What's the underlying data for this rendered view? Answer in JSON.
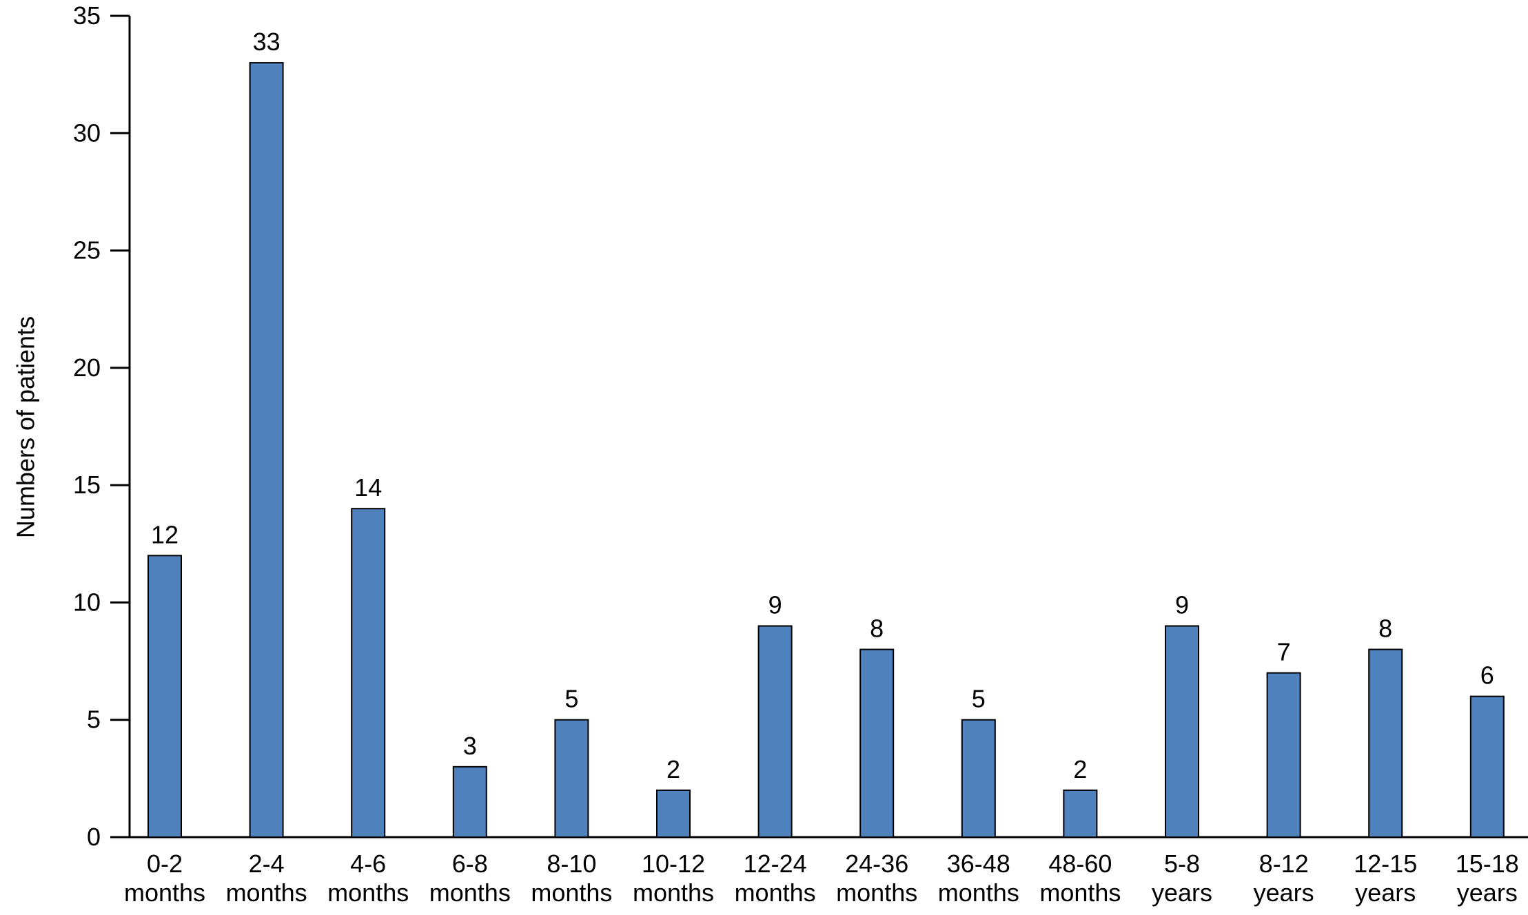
{
  "chart_data": {
    "type": "bar",
    "y_label": "Numbers of patients",
    "categories": [
      "0-2 months",
      "2-4 months",
      "4-6 months",
      "6-8 months",
      "8-10 months",
      "10-12 months",
      "12-24 months",
      "24-36 months",
      "36-48 months",
      "48-60 months",
      "5-8 years",
      "8-12 years",
      "12-15 years",
      "15-18 years"
    ],
    "values": [
      12,
      33,
      14,
      3,
      5,
      2,
      9,
      8,
      5,
      2,
      9,
      7,
      8,
      6
    ],
    "color": "#4f81bd",
    "ylim": [
      0,
      35
    ],
    "yticks": [
      0,
      5,
      10,
      15,
      20,
      25,
      30,
      35
    ]
  }
}
